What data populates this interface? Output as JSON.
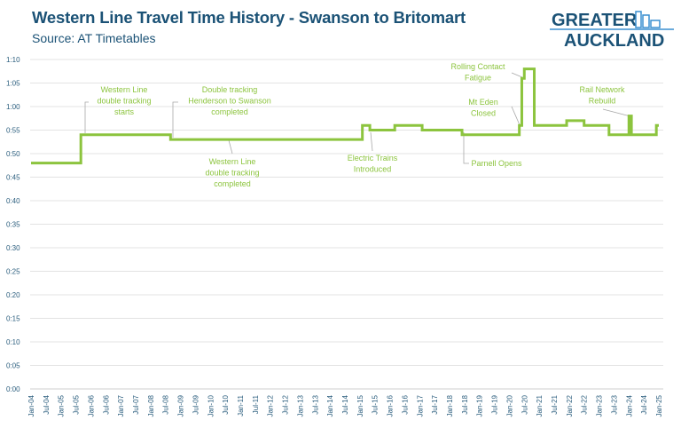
{
  "chart_data": {
    "type": "line",
    "title": "Western Line Travel Time History - Swanson to Britomart",
    "subtitle": "Source: AT Timetables",
    "xlabel": "",
    "ylabel": "",
    "line_style": "step",
    "line_color": "#8cc43e",
    "grid": "horizontal",
    "ylim_minutes": [
      0,
      70
    ],
    "y_ticks": [
      "0:00",
      "0:05",
      "0:10",
      "0:15",
      "0:20",
      "0:25",
      "0:30",
      "0:35",
      "0:40",
      "0:45",
      "0:50",
      "0:55",
      "1:00",
      "1:05",
      "1:10"
    ],
    "x_ticks": [
      "Jan-04",
      "Jul-04",
      "Jan-05",
      "Jul-05",
      "Jan-06",
      "Jul-06",
      "Jan-07",
      "Jul-07",
      "Jan-08",
      "Jul-08",
      "Jan-09",
      "Jul-09",
      "Jan-10",
      "Jul-10",
      "Jan-11",
      "Jul-11",
      "Jan-12",
      "Jul-12",
      "Jan-13",
      "Jul-13",
      "Jan-14",
      "Jul-14",
      "Jan-15",
      "Jul-15",
      "Jan-16",
      "Jul-16",
      "Jan-17",
      "Jul-17",
      "Jan-18",
      "Jul-18",
      "Jan-19",
      "Jul-19",
      "Jan-20",
      "Jul-20",
      "Jan-21",
      "Jul-21",
      "Jan-22",
      "Jul-22",
      "Jan-23",
      "Jul-23",
      "Jan-24",
      "Jul-24",
      "Jan-25"
    ],
    "xlim": [
      "2004-01",
      "2025-01"
    ],
    "series": [
      {
        "points": [
          {
            "date": "2004-01",
            "minutes": 48
          },
          {
            "date": "2005-09",
            "minutes": 54
          },
          {
            "date": "2008-09",
            "minutes": 53
          },
          {
            "date": "2015-02",
            "minutes": 56
          },
          {
            "date": "2015-05",
            "minutes": 55
          },
          {
            "date": "2016-03",
            "minutes": 56
          },
          {
            "date": "2017-02",
            "minutes": 55
          },
          {
            "date": "2018-06",
            "minutes": 54
          },
          {
            "date": "2020-05",
            "minutes": 56
          },
          {
            "date": "2020-06",
            "minutes": 66
          },
          {
            "date": "2020-07",
            "minutes": 68
          },
          {
            "date": "2020-11",
            "minutes": 56
          },
          {
            "date": "2021-12",
            "minutes": 57
          },
          {
            "date": "2022-07",
            "minutes": 56
          },
          {
            "date": "2023-05",
            "minutes": 54
          },
          {
            "date": "2024-01",
            "minutes": 58
          },
          {
            "date": "2024-02",
            "minutes": 54
          },
          {
            "date": "2024-12",
            "minutes": 56
          },
          {
            "date": "2025-01",
            "minutes": 56
          }
        ]
      }
    ],
    "annotations": [
      {
        "lines": [
          "Western Line",
          "double tracking",
          "starts"
        ]
      },
      {
        "lines": [
          "Double tracking",
          "Henderson to Swanson",
          "completed"
        ]
      },
      {
        "lines": [
          "Western Line",
          "double tracking",
          "completed"
        ]
      },
      {
        "lines": [
          "Electric Trains",
          "Introduced"
        ]
      },
      {
        "lines": [
          "Parnell Opens"
        ]
      },
      {
        "lines": [
          "Mt Eden",
          "Closed"
        ]
      },
      {
        "lines": [
          "Rolling Contact",
          "Fatigue"
        ]
      },
      {
        "lines": [
          "Rail Network",
          "Rebuild"
        ]
      }
    ]
  },
  "logo": {
    "line1": "GREATER",
    "line2": "AUCKLAND",
    "color": "#1b5276",
    "accent": "#3a8fd0"
  }
}
